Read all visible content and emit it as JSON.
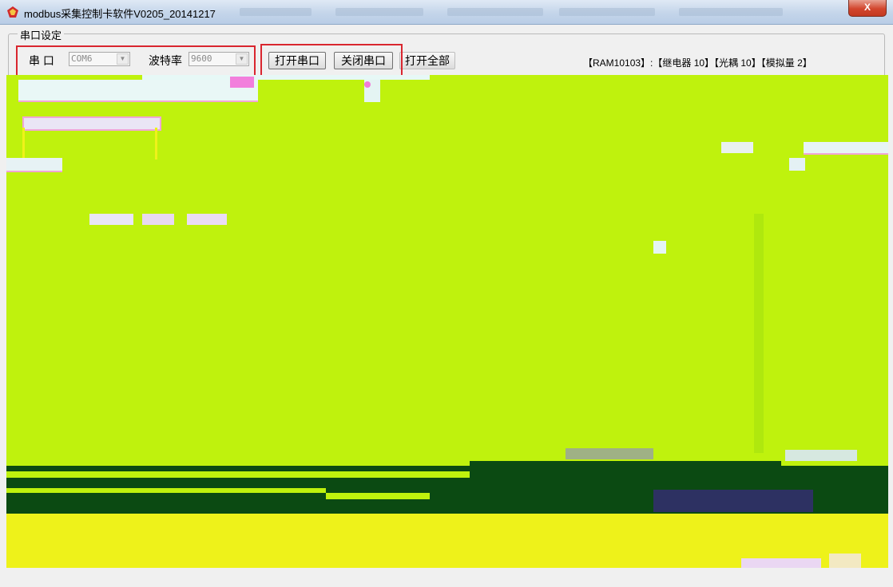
{
  "window": {
    "title": "modbus采集控制卡软件V0205_20141217",
    "close_label": "X",
    "icon": "app-logo-icon"
  },
  "serial": {
    "group_title": "串口设定",
    "port_label": "串 口",
    "port_value": "COM6",
    "baud_label": "波特率",
    "baud_value": "9600",
    "open_label": "打开串口",
    "close_label": "关闭串口",
    "open_all_label": "打开全部"
  },
  "status": {
    "device_info": "【RAM10103】:【继电器 10】【光耦 10】【模拟量 2】"
  },
  "colors": {
    "glitch_green": "#bff20d",
    "glitch_yellow": "#eef21a",
    "dark_green": "#0b4a12",
    "highlight_red": "#d9262f"
  }
}
